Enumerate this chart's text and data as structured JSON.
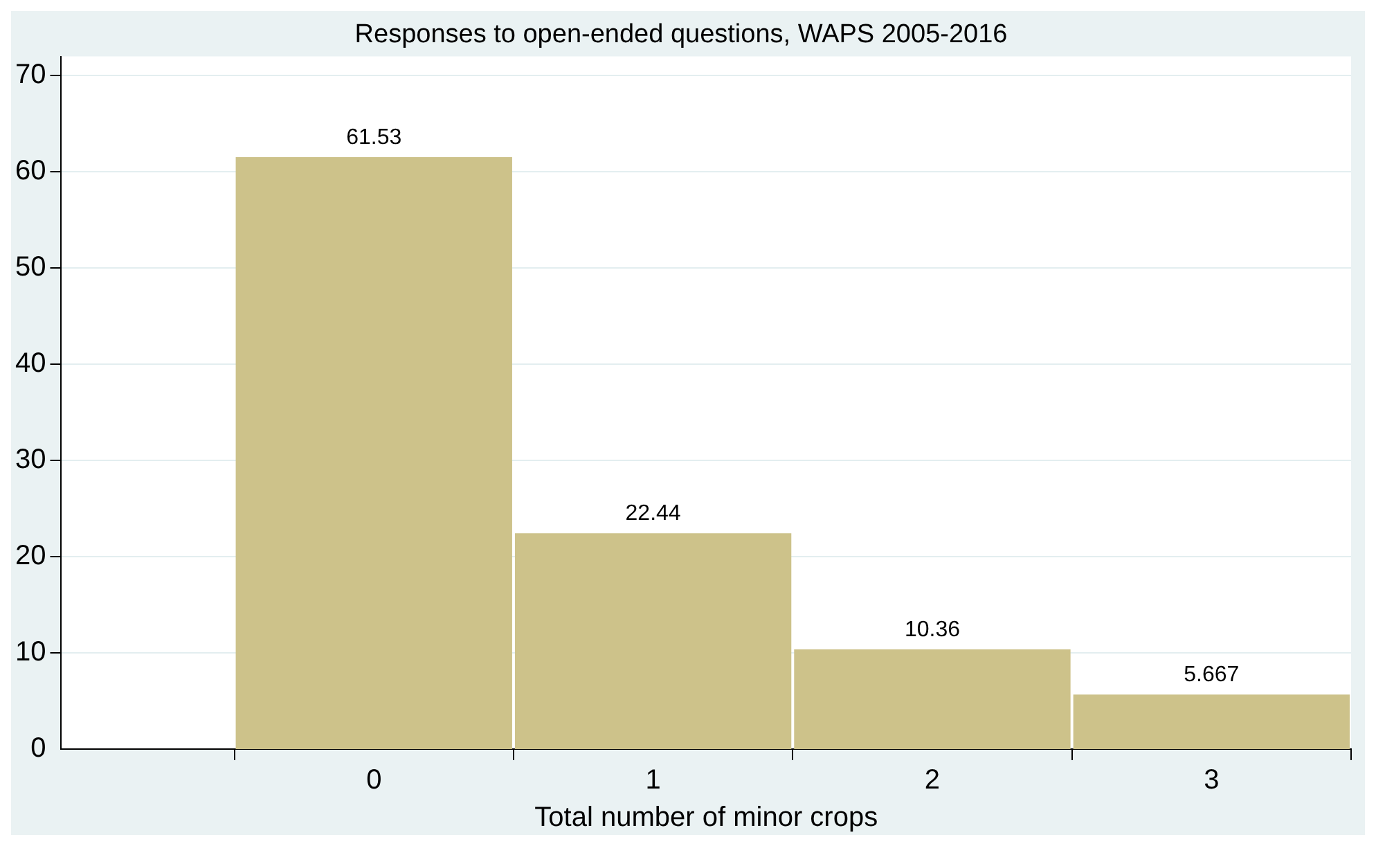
{
  "chart_data": {
    "type": "histogram",
    "title": "Responses to open-ended questions, WAPS 2005-2016",
    "xlabel": "Total number of minor crops",
    "bins": [
      -0.5,
      0.5,
      1.5,
      2.5,
      3.5
    ],
    "values": [
      61.53,
      22.44,
      10.36,
      5.667
    ],
    "color": "#cdc28a",
    "xlim": [
      -1.12,
      3.5
    ],
    "xticks": [
      0,
      1,
      2,
      3
    ],
    "ylim": [
      0,
      72
    ],
    "yticks": [
      0,
      10,
      20,
      30,
      40,
      50,
      60,
      70
    ],
    "grid": "y",
    "legend": false,
    "data_labels": true
  }
}
